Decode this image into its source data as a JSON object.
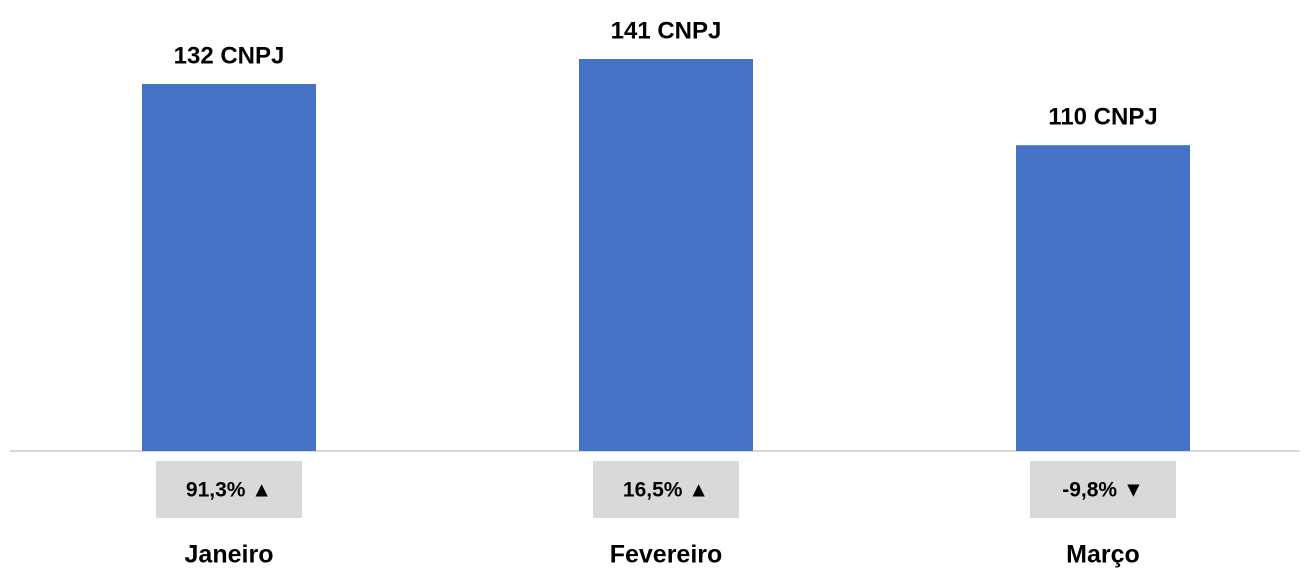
{
  "chart_data": {
    "type": "bar",
    "categories": [
      "Janeiro",
      "Fevereiro",
      "Março"
    ],
    "values": [
      132,
      141,
      110
    ],
    "value_labels": [
      "132 CNPJ",
      "141 CNPJ",
      "110 CNPJ"
    ],
    "changes": [
      "91,3% ▲",
      "16,5% ▲",
      "-9,8% ▼"
    ],
    "color": "#4472c4"
  }
}
